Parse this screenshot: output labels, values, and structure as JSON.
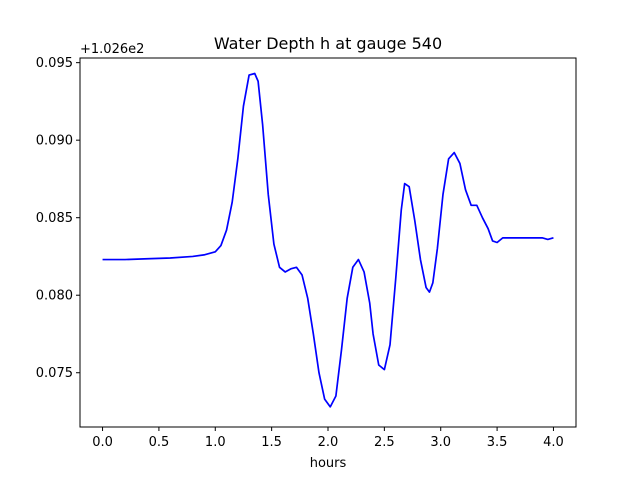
{
  "chart_data": {
    "type": "line",
    "title": "Water Depth h at gauge 540",
    "xlabel": "hours",
    "ylabel": "",
    "y_offset_label": "+1.026e2",
    "xlim": [
      -0.2,
      4.2
    ],
    "ylim": [
      0.0715,
      0.0953
    ],
    "xticks": [
      0.0,
      0.5,
      1.0,
      1.5,
      2.0,
      2.5,
      3.0,
      3.5,
      4.0
    ],
    "xtick_labels": [
      "0.0",
      "0.5",
      "1.0",
      "1.5",
      "2.0",
      "2.5",
      "3.0",
      "3.5",
      "4.0"
    ],
    "yticks": [
      0.075,
      0.08,
      0.085,
      0.09,
      0.095
    ],
    "ytick_labels": [
      "0.075",
      "0.080",
      "0.085",
      "0.090",
      "0.095"
    ],
    "grid": false,
    "series": [
      {
        "color": "#0000ff",
        "x": [
          0.0,
          0.2,
          0.4,
          0.6,
          0.8,
          0.9,
          1.0,
          1.05,
          1.1,
          1.15,
          1.2,
          1.25,
          1.3,
          1.35,
          1.38,
          1.42,
          1.47,
          1.52,
          1.57,
          1.62,
          1.67,
          1.72,
          1.77,
          1.82,
          1.87,
          1.92,
          1.97,
          2.02,
          2.07,
          2.12,
          2.17,
          2.22,
          2.27,
          2.32,
          2.37,
          2.4,
          2.45,
          2.5,
          2.55,
          2.6,
          2.65,
          2.68,
          2.72,
          2.77,
          2.82,
          2.87,
          2.9,
          2.93,
          2.97,
          3.02,
          3.07,
          3.12,
          3.17,
          3.22,
          3.27,
          3.32,
          3.37,
          3.42,
          3.46,
          3.5,
          3.55,
          3.6,
          3.65,
          3.7,
          3.75,
          3.8,
          3.85,
          3.9,
          3.95,
          4.0
        ],
        "y": [
          0.0823,
          0.0823,
          0.08235,
          0.0824,
          0.0825,
          0.0826,
          0.0828,
          0.0832,
          0.0842,
          0.086,
          0.0888,
          0.0922,
          0.0942,
          0.0943,
          0.0938,
          0.091,
          0.0865,
          0.0833,
          0.0818,
          0.0815,
          0.0817,
          0.0818,
          0.0813,
          0.0798,
          0.0775,
          0.075,
          0.0733,
          0.0728,
          0.0735,
          0.0765,
          0.0798,
          0.0818,
          0.0823,
          0.0815,
          0.0795,
          0.0775,
          0.0755,
          0.0752,
          0.0768,
          0.081,
          0.0855,
          0.0872,
          0.087,
          0.0848,
          0.0823,
          0.0805,
          0.0802,
          0.0808,
          0.083,
          0.0865,
          0.0888,
          0.0892,
          0.0885,
          0.0868,
          0.0858,
          0.0858,
          0.085,
          0.0843,
          0.0835,
          0.0834,
          0.0837,
          0.0837,
          0.0837,
          0.0837,
          0.0837,
          0.0837,
          0.0837,
          0.0837,
          0.0836,
          0.0837
        ]
      }
    ]
  }
}
